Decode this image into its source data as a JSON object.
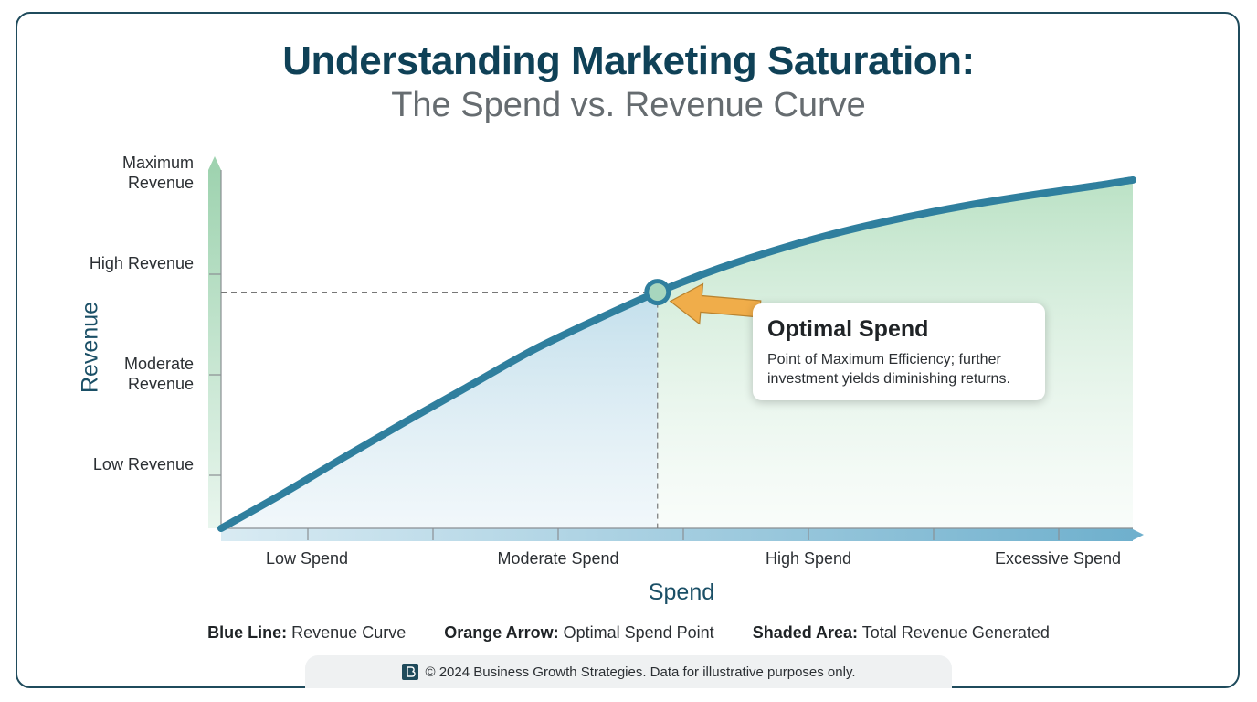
{
  "header": {
    "title": "Understanding Marketing Saturation:",
    "subtitle": "The Spend vs. Revenue Curve"
  },
  "chart_data": {
    "type": "area",
    "xlabel": "Spend",
    "ylabel": "Revenue",
    "x_categories": [
      "Low Spend",
      "Moderate Spend",
      "High Spend",
      "Excessive Spend"
    ],
    "y_categories": [
      "Low Revenue",
      "Moderate Revenue",
      "High Revenue",
      "Maximum Revenue"
    ],
    "xlim": [
      0,
      4
    ],
    "ylim": [
      0,
      4
    ],
    "series": [
      {
        "name": "Revenue Curve",
        "color": "#2f7f9e",
        "x": [
          0,
          0.25,
          0.5,
          0.75,
          1.0,
          1.25,
          1.5,
          1.75,
          2.0,
          2.25,
          2.5,
          2.75,
          3.0,
          3.25,
          3.5,
          3.75,
          3.65
        ],
        "y": [
          0,
          0.35,
          0.72,
          1.08,
          1.43,
          1.78,
          2.08,
          2.36,
          2.6,
          2.8,
          2.97,
          3.11,
          3.23,
          3.33,
          3.42,
          3.48,
          3.47
        ]
      }
    ],
    "optimal_point": {
      "x": 1.75,
      "y": 2.36
    },
    "callout": {
      "title": "Optimal Spend",
      "text": "Point of Maximum Efficiency; further investment yields diminishing returns."
    },
    "colors": {
      "curve": "#2f7f9e",
      "arrow": "#f0ad4a",
      "fill_blue": "#a9cfe0",
      "fill_green": "#bfe3c8",
      "dashed": "#777777"
    },
    "grid": false
  },
  "legend": [
    {
      "key": "Blue Line:",
      "text": "Revenue Curve"
    },
    {
      "key": "Orange Arrow:",
      "text": "Optimal Spend Point"
    },
    {
      "key": "Shaded Area:",
      "text": "Total Revenue Generated"
    }
  ],
  "footer": {
    "text": "© 2024 Business Growth Strategies. Data for illustrative purposes only.",
    "logo_icon": "b-logo-icon"
  }
}
